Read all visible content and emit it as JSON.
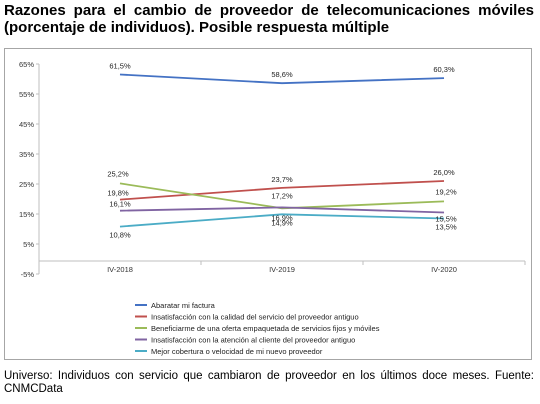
{
  "title": "Razones para el cambio de proveedor de telecomunicaciones móviles (porcentaje de individuos). Posible respuesta múltiple",
  "footnote": "Universo: Individuos con servicio que cambiaron de proveedor en los últimos doce meses. Fuente: CNMCData",
  "chart_data": {
    "type": "line",
    "categories": [
      "IV-2018",
      "IV-2019",
      "IV-2020"
    ],
    "y_ticks": [
      "-5%",
      "5%",
      "15%",
      "25%",
      "35%",
      "45%",
      "55%",
      "65%"
    ],
    "ylim": [
      -5,
      65
    ],
    "grid": false,
    "legend_position": "bottom",
    "series": [
      {
        "name": "Abaratar mi factura",
        "color": "#4472c4",
        "values": [
          61.5,
          58.6,
          60.3
        ],
        "labels": [
          "61,5%",
          "58,6%",
          "60,3%"
        ]
      },
      {
        "name": "Insatisfacción con la calidad del servicio del proveedor antiguo",
        "color": "#c0504d",
        "values": [
          19.8,
          23.7,
          26.0
        ],
        "labels": [
          "19,8%",
          "23,7%",
          "26,0%"
        ]
      },
      {
        "name": "Beneficiarme de una oferta empaquetada de servicios fijos y móviles",
        "color": "#9bbb59",
        "values": [
          25.2,
          16.9,
          19.2
        ],
        "labels": [
          "25,2%",
          "16,9%",
          "19,2%"
        ]
      },
      {
        "name": "Insatisfacción con la atención al cliente del proveedor antiguo",
        "color": "#8064a2",
        "values": [
          16.1,
          17.2,
          15.5
        ],
        "labels": [
          "16,1%",
          "17,2%",
          "15,5%"
        ]
      },
      {
        "name": "Mejor cobertura o velocidad de mi nuevo proveedor",
        "color": "#4bacc6",
        "values": [
          10.8,
          14.9,
          13.5
        ],
        "labels": [
          "10,8%",
          "14,9%",
          "13,5%"
        ]
      }
    ]
  }
}
